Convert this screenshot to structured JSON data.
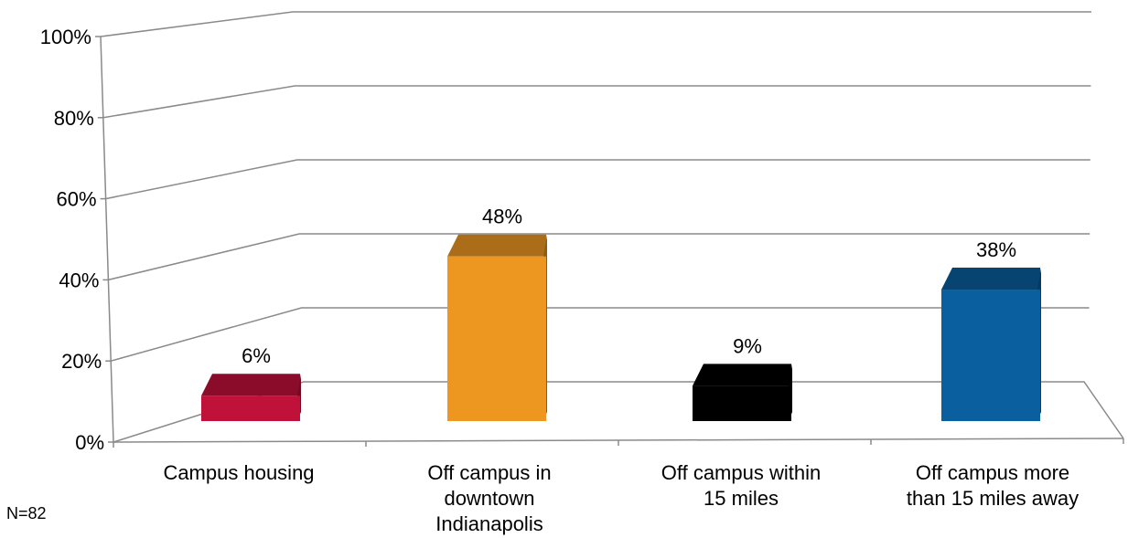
{
  "chart_data": {
    "type": "bar",
    "categories": [
      [
        "Campus housing"
      ],
      [
        "Off campus in",
        "downtown",
        "Indianapolis"
      ],
      [
        "Off campus within",
        "15 miles"
      ],
      [
        "Off campus more",
        "than 15 miles away"
      ]
    ],
    "values": [
      6,
      48,
      9,
      38
    ],
    "value_labels": [
      "6%",
      "48%",
      "9%",
      "38%"
    ],
    "colors": [
      "#C0113A",
      "#EE9720",
      "#000000",
      "#0A5F9E"
    ],
    "y_ticks": [
      "0%",
      "20%",
      "40%",
      "60%",
      "80%",
      "100%"
    ],
    "ylim": [
      0,
      100
    ],
    "grid": true,
    "three_d": true
  },
  "footnote": "N=82"
}
